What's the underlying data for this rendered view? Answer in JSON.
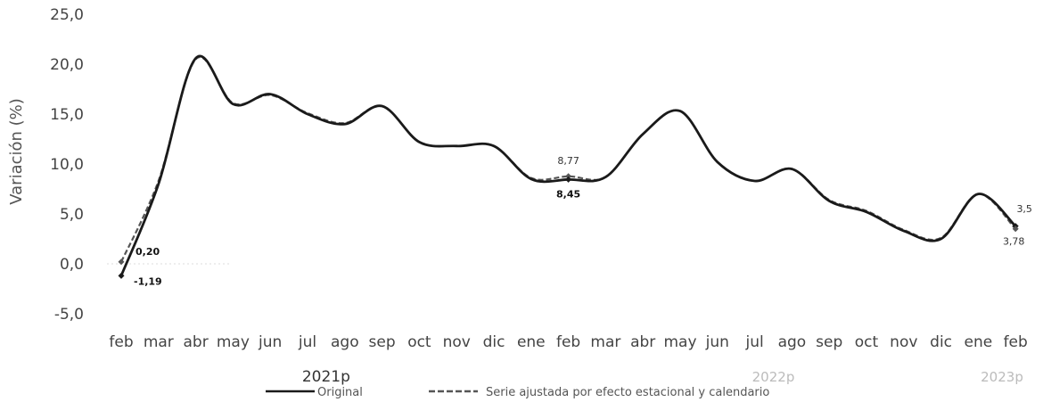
{
  "chart_data": {
    "type": "line",
    "ylabel": "Variación (%)",
    "ylim": [
      -5,
      25
    ],
    "yticks": [
      "25,0",
      "20,0",
      "15,0",
      "10,0",
      "5,0",
      "0,0",
      "-5,0"
    ],
    "ytick_values": [
      25,
      20,
      15,
      10,
      5,
      0,
      -5
    ],
    "categories": [
      "feb",
      "mar",
      "abr",
      "may",
      "jun",
      "jul",
      "ago",
      "sep",
      "oct",
      "nov",
      "dic",
      "ene",
      "feb",
      "mar",
      "abr",
      "may",
      "jun",
      "jul",
      "ago",
      "sep",
      "oct",
      "nov",
      "dic",
      "ene",
      "feb"
    ],
    "year_labels": [
      {
        "label": "2021p",
        "start": 0,
        "end": 11
      },
      {
        "label": "2022p",
        "start": 12,
        "end": 23
      },
      {
        "label": "2023p",
        "start": 23,
        "end": 24
      }
    ],
    "series": [
      {
        "name": "Original",
        "style": "solid",
        "color": "#1a1a1a",
        "values": [
          -1.19,
          8.0,
          20.6,
          16.0,
          17.0,
          15.0,
          14.0,
          15.8,
          12.2,
          11.8,
          11.8,
          8.5,
          8.45,
          8.7,
          13.0,
          15.3,
          10.2,
          8.3,
          9.5,
          6.3,
          5.2,
          3.3,
          2.5,
          7.0,
          3.78
        ]
      },
      {
        "name": "Serie ajustada por efecto estacional y calendario",
        "style": "dashed",
        "color": "#555555",
        "values": [
          0.2,
          8.3,
          20.5,
          16.1,
          16.9,
          15.1,
          14.1,
          15.8,
          12.2,
          11.8,
          11.8,
          8.6,
          8.77,
          8.7,
          13.0,
          15.3,
          10.2,
          8.3,
          9.5,
          6.4,
          5.3,
          3.4,
          2.6,
          7.0,
          3.5
        ]
      }
    ],
    "data_labels": [
      {
        "text": "0,20",
        "index": 0,
        "series": 1
      },
      {
        "text": "-1,19",
        "index": 0,
        "series": 0
      },
      {
        "text": "8,77",
        "index": 12,
        "series": 1
      },
      {
        "text": "8,45",
        "index": 12,
        "series": 0
      },
      {
        "text": "3,78",
        "index": 24,
        "series": 0
      },
      {
        "text": "3,5",
        "index": 24,
        "series": 1
      }
    ],
    "legend": "bottom-center",
    "grid": false
  }
}
